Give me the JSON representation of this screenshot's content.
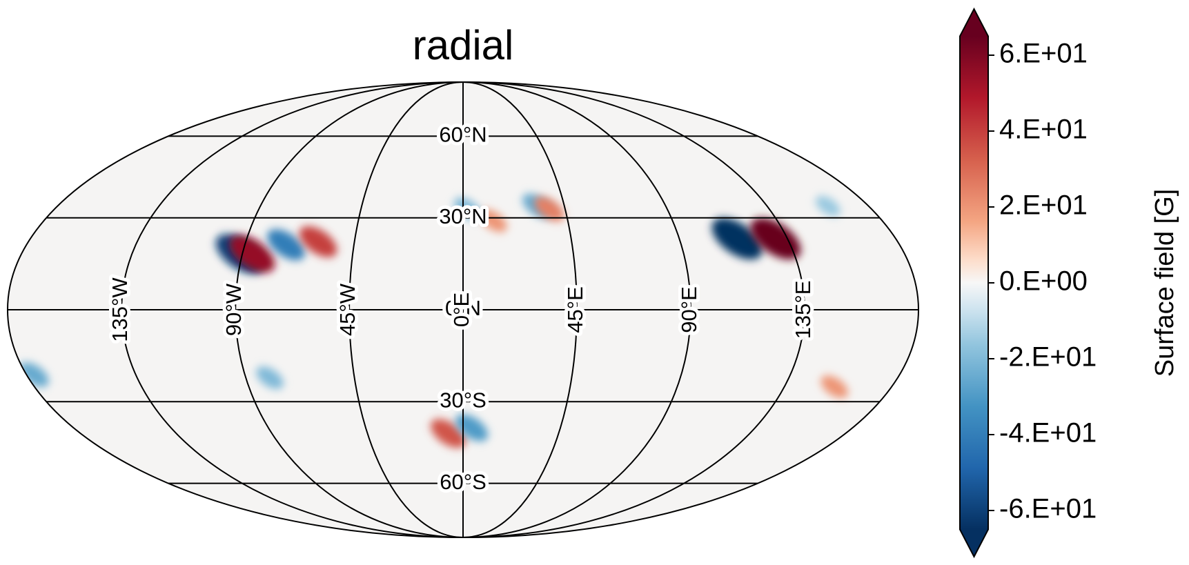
{
  "chart_data": {
    "type": "map",
    "projection": "mollweide",
    "title": "radial",
    "colormap": "RdBu_r",
    "clim": [
      -65,
      65
    ],
    "extend": "both",
    "grid": true,
    "colorbar_label": "Surface field [G]",
    "colorbar_ticks": [
      {
        "value": 60,
        "label": "6.E+01"
      },
      {
        "value": 40,
        "label": "4.E+01"
      },
      {
        "value": 20,
        "label": "2.E+01"
      },
      {
        "value": 0,
        "label": "0.E+00"
      },
      {
        "value": -20,
        "label": "-2.E+01"
      },
      {
        "value": -40,
        "label": "-4.E+01"
      },
      {
        "value": -60,
        "label": "-6.E+01"
      }
    ],
    "parallels": [
      {
        "value": 60,
        "label": "60°N"
      },
      {
        "value": 30,
        "label": "30°N"
      },
      {
        "value": 0,
        "label": "0°N"
      },
      {
        "value": -30,
        "label": "30°S"
      },
      {
        "value": -60,
        "label": "60°S"
      }
    ],
    "meridians": [
      {
        "value": -135,
        "label": "135°W"
      },
      {
        "value": -90,
        "label": "90°W"
      },
      {
        "value": -45,
        "label": "45°W"
      },
      {
        "value": 0,
        "label": "0°E"
      },
      {
        "value": 45,
        "label": "45°E"
      },
      {
        "value": 90,
        "label": "90°E"
      },
      {
        "value": 135,
        "label": "135°E"
      }
    ],
    "features": [
      {
        "lon": 114,
        "lat": 23,
        "value": -65
      },
      {
        "lon": 130,
        "lat": 23,
        "value": 65
      },
      {
        "lon": -91,
        "lat": 18,
        "value": -60
      },
      {
        "lon": -86,
        "lat": 18,
        "value": 55
      },
      {
        "lon": -73,
        "lat": 21,
        "value": -40
      },
      {
        "lon": -60,
        "lat": 22,
        "value": 40
      },
      {
        "lon": 13,
        "lat": 29,
        "value": 20
      },
      {
        "lon": 33,
        "lat": 34,
        "value": -25
      },
      {
        "lon": 38,
        "lat": 33,
        "value": 25
      },
      {
        "lon": 2,
        "lat": 33,
        "value": -20
      },
      {
        "lon": -7,
        "lat": -41,
        "value": 35
      },
      {
        "lon": 4,
        "lat": -39,
        "value": -30
      },
      {
        "lon": 156,
        "lat": -25,
        "value": 20
      },
      {
        "lon": -177,
        "lat": -21,
        "value": -25
      },
      {
        "lon": -80,
        "lat": -22,
        "value": -20
      },
      {
        "lon": 162,
        "lat": 34,
        "value": -15
      }
    ]
  }
}
